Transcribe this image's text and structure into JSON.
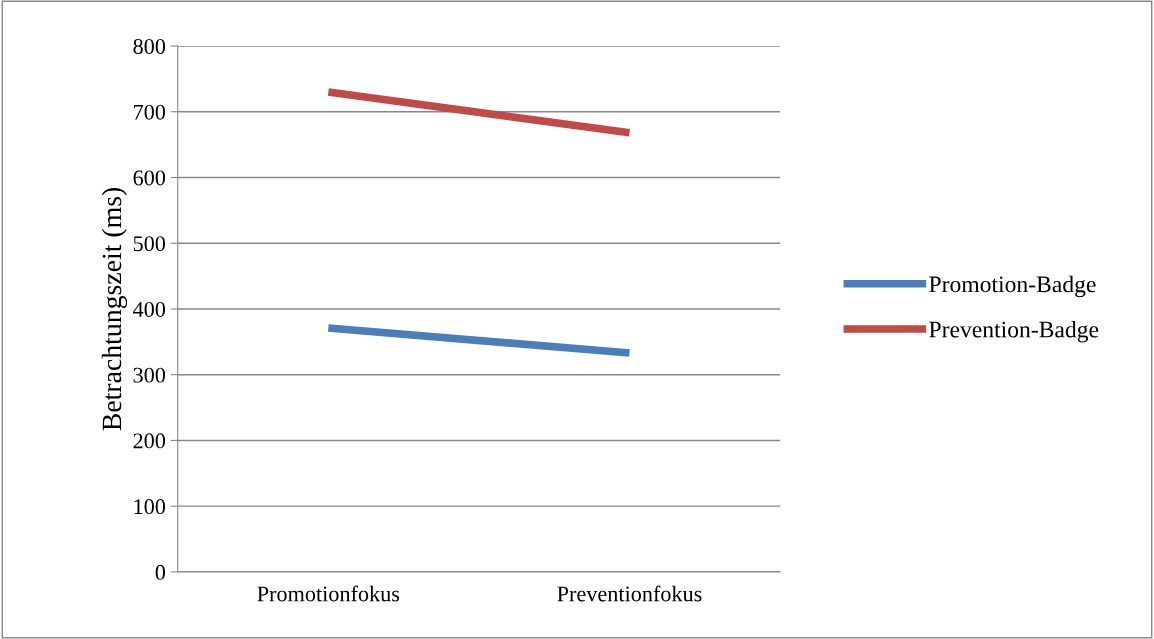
{
  "chart_data": {
    "type": "line",
    "ylabel": "Betrachtungszeit (ms)",
    "categories": [
      "Promotionfokus",
      "Preventionfokus"
    ],
    "series": [
      {
        "name": "Promotion-Badge",
        "color": "#4a7ebb",
        "values": [
          371,
          333
        ]
      },
      {
        "name": "Prevention-Badge",
        "color": "#be4b48",
        "values": [
          730,
          668
        ]
      }
    ],
    "ylim": [
      0,
      800
    ],
    "yticks": [
      0,
      100,
      200,
      300,
      400,
      500,
      600,
      700,
      800
    ],
    "grid": "y",
    "legend": "right",
    "marker": "none",
    "line_style": "solid"
  }
}
